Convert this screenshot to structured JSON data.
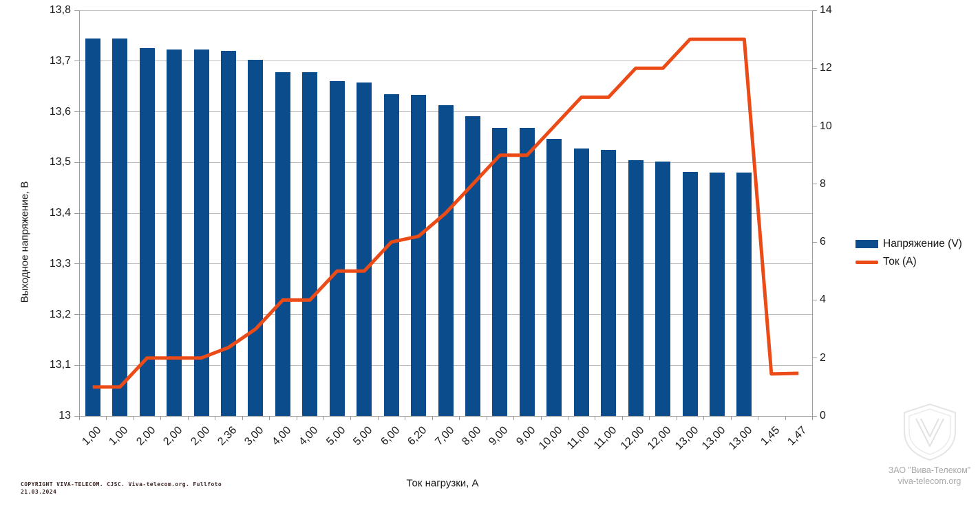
{
  "chart_data": {
    "type": "bar",
    "combo": "bar+line, dual axis",
    "categories": [
      "1,00",
      "1,00",
      "2,00",
      "2,00",
      "2,00",
      "2,36",
      "3,00",
      "4,00",
      "4,00",
      "5,00",
      "5,00",
      "6,00",
      "6,20",
      "7,00",
      "8,00",
      "9,00",
      "9,00",
      "10,00",
      "11,00",
      "11,00",
      "12,00",
      "12,00",
      "13,00",
      "13,00",
      "13,00",
      "1,45",
      "1,47"
    ],
    "series": [
      {
        "name": "Напряжение (V)",
        "type": "bar",
        "axis": "left",
        "color": "#0b4d8c",
        "values": [
          13.745,
          13.745,
          13.725,
          13.723,
          13.723,
          13.72,
          13.702,
          13.678,
          13.678,
          13.66,
          13.657,
          13.635,
          13.633,
          13.613,
          13.591,
          13.568,
          13.568,
          13.547,
          13.527,
          13.525,
          13.504,
          13.502,
          13.482,
          13.48,
          13.48,
          null,
          null
        ]
      },
      {
        "name": "Ток (А)",
        "type": "line",
        "axis": "right",
        "color": "#ea4b17",
        "values": [
          1,
          1,
          2,
          2,
          2,
          2.36,
          3,
          4,
          4,
          5,
          5,
          6,
          6.2,
          7,
          8,
          9,
          9,
          10,
          11,
          11,
          12,
          12,
          13,
          13,
          13,
          1.45,
          1.47
        ]
      }
    ],
    "left_axis": {
      "title": "Выходное напряжение, В",
      "min": 13,
      "max": 13.8,
      "step": 0.1,
      "tick_labels": [
        "13,8",
        "13,7",
        "13,6",
        "13,5",
        "13,4",
        "13,3",
        "13,2",
        "13,1",
        "13"
      ]
    },
    "right_axis": {
      "min": 0,
      "max": 14,
      "step": 2,
      "tick_labels": [
        "14",
        "12",
        "10",
        "8",
        "6",
        "4",
        "2",
        "0"
      ]
    },
    "x_axis": {
      "title": "Ток нагрузки, А"
    },
    "legend": {
      "position": "right",
      "items": [
        "Напряжение (V)",
        "Ток (А)"
      ]
    },
    "grid": "horizontal gridlines every 0.1 V"
  },
  "footer": {
    "copyright_line1": "COPYRIGHT VIVA-TELECOM. CJSC. Viva-telecom.org. Fullfoto",
    "copyright_line2": "21.03.2024"
  },
  "watermark": {
    "company": "ЗАО \"Вива-Телеком\"",
    "site": "viva-telecom.org"
  }
}
